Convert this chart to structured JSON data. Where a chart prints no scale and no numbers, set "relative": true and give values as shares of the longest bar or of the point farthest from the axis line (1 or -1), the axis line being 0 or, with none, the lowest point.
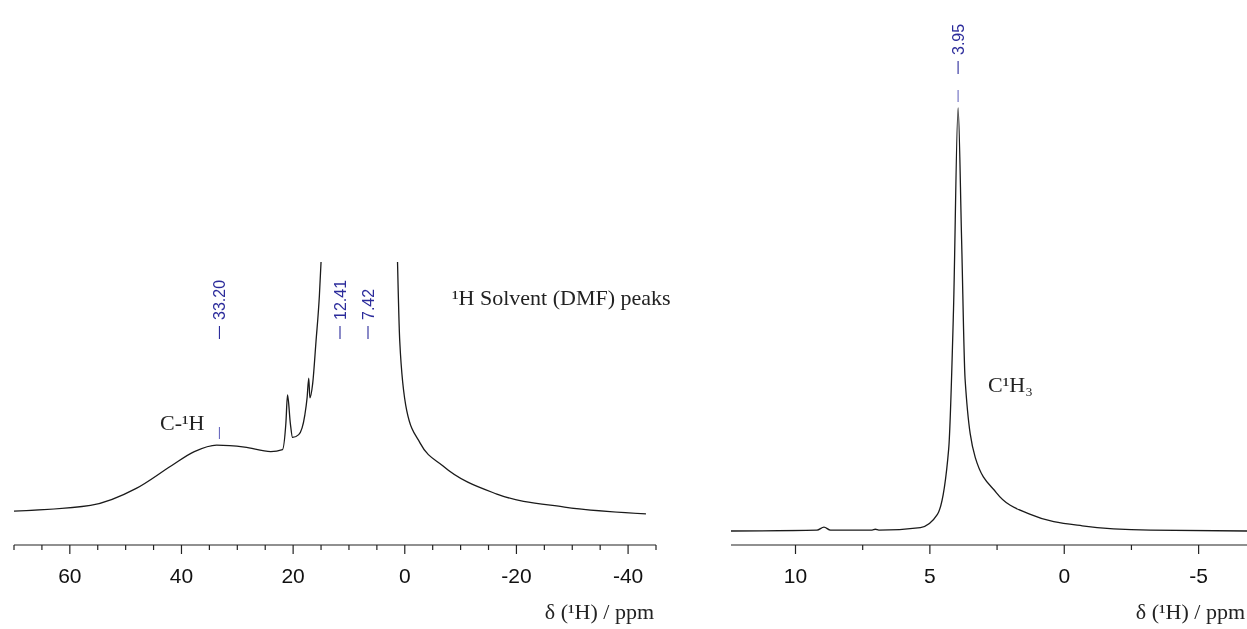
{
  "chart_data": [
    {
      "type": "line",
      "relative": true,
      "xlabel": "δ (¹H) / ppm",
      "xlim": [
        70,
        -45
      ],
      "xticks": [
        {
          "value": 70,
          "label": null
        },
        {
          "value": 65,
          "label": null
        },
        60,
        {
          "value": 55,
          "label": null
        },
        {
          "value": 50,
          "label": null
        },
        {
          "value": 45,
          "label": null
        },
        40,
        {
          "value": 35,
          "label": null
        },
        {
          "value": 30,
          "label": null
        },
        {
          "value": 25,
          "label": null
        },
        20,
        {
          "value": 15,
          "label": null
        },
        {
          "value": 10,
          "label": null
        },
        {
          "value": 5,
          "label": null
        },
        0,
        {
          "value": -5,
          "label": null
        },
        {
          "value": -10,
          "label": null
        },
        {
          "value": -15,
          "label": null
        },
        -20,
        {
          "value": -25,
          "label": null
        },
        {
          "value": -30,
          "label": null
        },
        {
          "value": -35,
          "label": null
        },
        -40,
        {
          "value": -45,
          "label": null
        }
      ],
      "series": [
        {
          "color": "#1a1a1a",
          "x": [
            70,
            56.3,
            48.1,
            41.8,
            37.7,
            33.7,
            28.7,
            24,
            21.9,
            21.3,
            21,
            20.5,
            20.1,
            19,
            17.9,
            17.5,
            17.2,
            17,
            16.5,
            15.9,
            15.3,
            15,
            8,
            1.3,
            0.9,
            -0.35,
            -2.75,
            -6.8,
            -16.5,
            -28.6,
            -43.2
          ],
          "values": [
            0.12,
            0.14,
            0.2,
            0.28,
            0.33,
            0.353,
            0.346,
            0.33,
            0.337,
            0.43,
            0.53,
            0.43,
            0.38,
            0.39,
            0.46,
            0.52,
            0.59,
            0.52,
            0.57,
            0.72,
            0.88,
            1,
            null,
            1,
            0.72,
            0.475,
            0.36,
            0.28,
            0.18,
            0.134,
            0.11
          ]
        }
      ],
      "annotations": [
        {
          "text": "33.20",
          "x": 33.2
        },
        "12.41",
        "7.42",
        "C-¹H",
        "¹H Solvent (DMF) peaks"
      ]
    },
    {
      "type": "line",
      "relative": true,
      "xlabel": "δ (¹H) / ppm",
      "xlim": [
        12.4,
        -6.8
      ],
      "xticks": [
        10,
        {
          "value": 7.5,
          "label": null
        },
        5,
        {
          "value": 2.5,
          "label": null
        },
        0,
        {
          "value": -2.5,
          "label": null
        },
        -5
      ],
      "series": [
        {
          "color": "#1a1a1a",
          "x": [
            12.4,
            9.2,
            8.94,
            8.7,
            7.15,
            7.03,
            6.9,
            5.35,
            4.72,
            4.3,
            4.12,
            3.95,
            3.82,
            3.69,
            3.31,
            2.53,
            1.26,
            -0.67,
            -3.2,
            -6.8
          ],
          "values": [
            0.032,
            0.034,
            0.041,
            0.034,
            0.034,
            0.036,
            0.034,
            0.04,
            0.07,
            0.22,
            0.54,
            1,
            0.7,
            0.38,
            0.2,
            0.12,
            0.07,
            0.044,
            0.034,
            0.032
          ]
        }
      ],
      "annotations": [
        {
          "text": "3.95",
          "x": 3.95
        },
        "C¹H₃"
      ]
    }
  ]
}
